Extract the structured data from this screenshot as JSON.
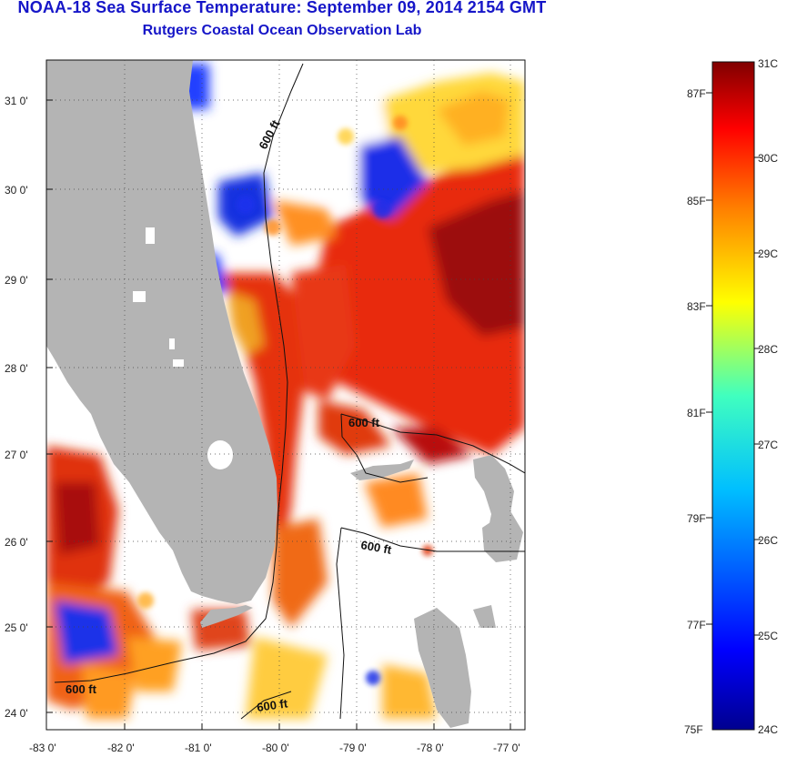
{
  "title": "NOAA-18 Sea Surface Temperature:  September 09, 2014 2154 GMT",
  "subtitle": "Rutgers Coastal Ocean Observation Lab",
  "map": {
    "lat_labels": [
      "31 0'",
      "30 0'",
      "29 0'",
      "28 0'",
      "27 0'",
      "26 0'",
      "25 0'",
      "24 0'"
    ],
    "lon_labels": [
      "-83 0'",
      "-82 0'",
      "-81 0'",
      "-80 0'",
      "-79 0'",
      "-78 0'",
      "-77 0'"
    ],
    "contour_labels": [
      "600 ft",
      "600 ft",
      "600 ft",
      "600 ft",
      "600 ft"
    ],
    "lat_range": [
      23.8,
      31.5
    ],
    "lon_range": [
      -83,
      -76.8
    ],
    "colors": {
      "land": "#b4b4b4",
      "no_data": "#ffffff",
      "grid": "#555555"
    }
  },
  "colorbar": {
    "celsius": [
      "31C",
      "30C",
      "29C",
      "28C",
      "27C",
      "26C",
      "25C",
      "24C"
    ],
    "fahrenheit": [
      "87F",
      "85F",
      "83F",
      "81F",
      "79F",
      "77F",
      "75F"
    ],
    "range_c": [
      24,
      31
    ],
    "range_f": [
      75,
      88
    ]
  }
}
